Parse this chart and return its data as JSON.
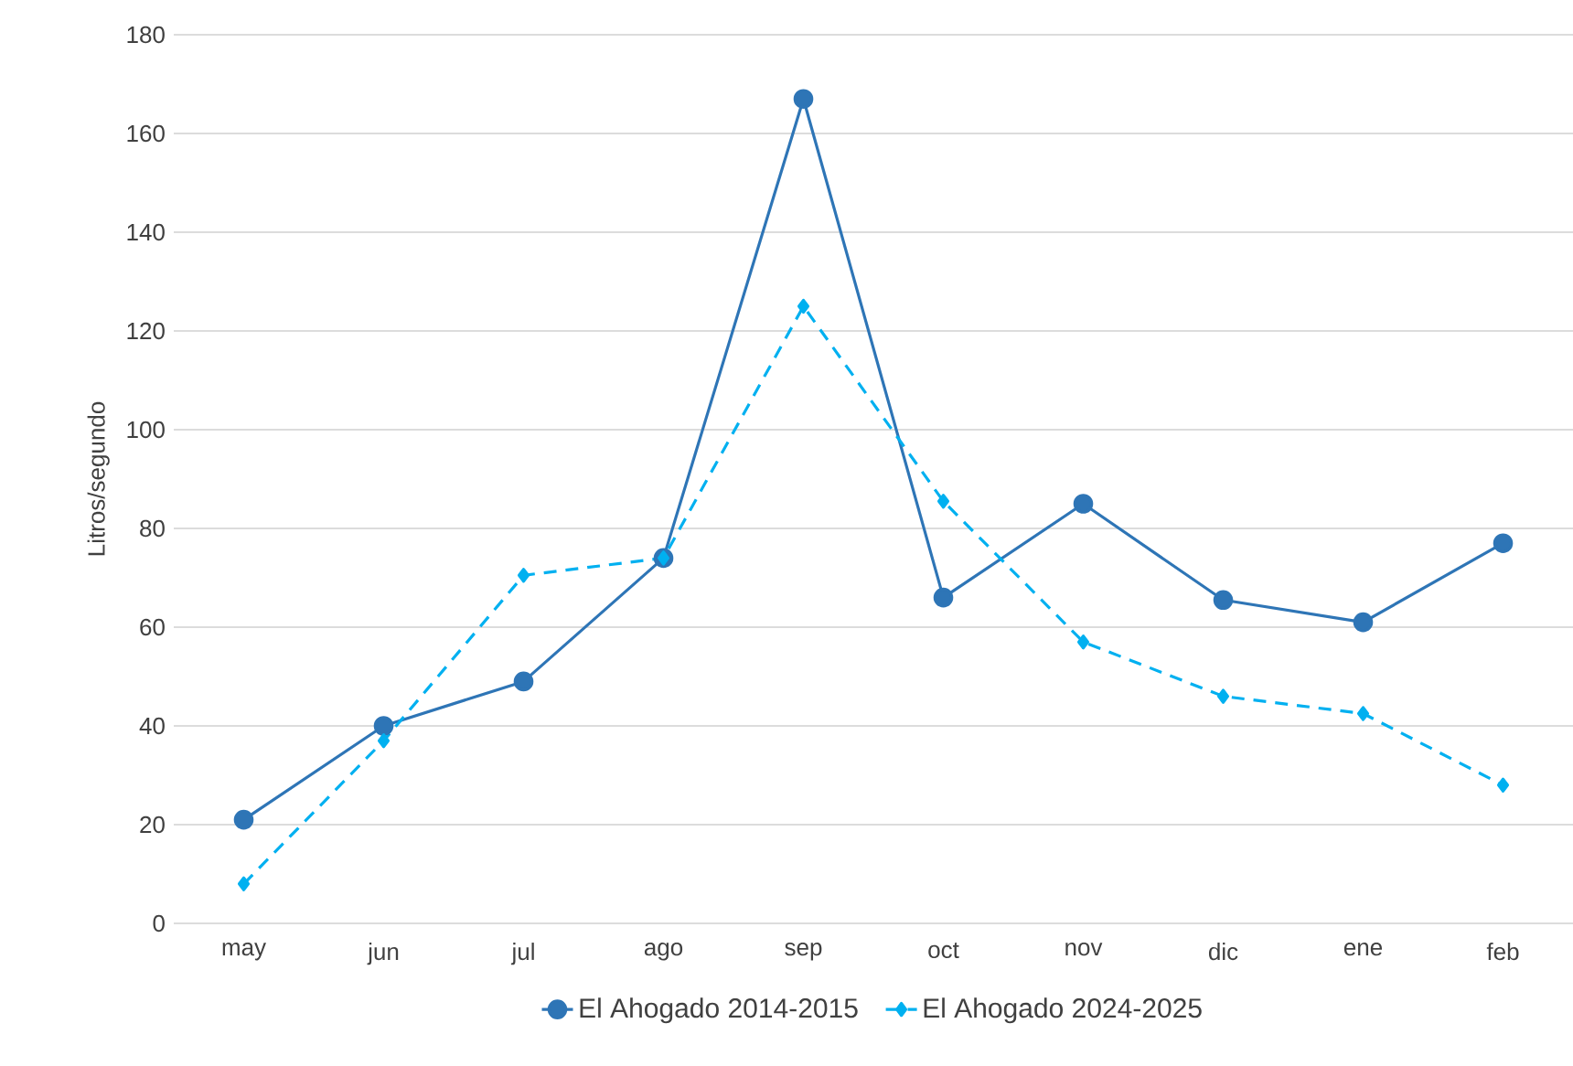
{
  "chart_data": {
    "type": "line",
    "ylabel": "Litros/segundo",
    "categories": [
      "may",
      "jun",
      "jul",
      "ago",
      "sep",
      "oct",
      "nov",
      "dic",
      "ene",
      "feb"
    ],
    "series": [
      {
        "name": "El Ahogado 2014-2015",
        "color": "#2e75b6",
        "marker": "circle",
        "line_style": "solid",
        "values": [
          21,
          40,
          49,
          74,
          167,
          66,
          85,
          65.5,
          61,
          77
        ]
      },
      {
        "name": "El Ahogado 2024-2025",
        "color": "#00b0f0",
        "marker": "diamond",
        "line_style": "dashed",
        "values": [
          8,
          37,
          70.5,
          74,
          125,
          85.5,
          57,
          46,
          42.5,
          28
        ]
      }
    ],
    "ylim": [
      0,
      180
    ],
    "yticks": [
      0,
      20,
      40,
      60,
      80,
      100,
      120,
      140,
      160,
      180
    ],
    "grid": "y",
    "legend": "bottom"
  }
}
